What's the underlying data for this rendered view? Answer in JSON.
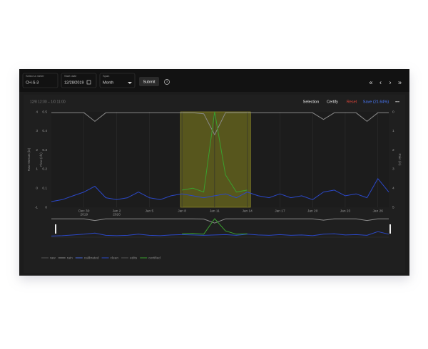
{
  "toolbar": {
    "meter_label": "Select a meter",
    "meter": "CH-S-3",
    "date_label": "Start date",
    "date": "12/28/2019",
    "span_label": "Span",
    "span": "Month",
    "submit": "Submit",
    "help": "?",
    "nav": [
      "«",
      "‹",
      "›",
      "»"
    ]
  },
  "actions": [
    "Selection",
    "Certify",
    "Reset",
    "Save (21.64%)",
    "•••"
  ],
  "chart_data": {
    "type": "line",
    "title": "12/8 12:00 – 1/0 11:00",
    "categories": [
      null,
      null,
      null,
      "Dec 30",
      null,
      null,
      "Jan 2",
      null,
      null,
      "Jan 5",
      null,
      null,
      "Jan 8",
      null,
      null,
      "Jan 11",
      null,
      null,
      "Jan 14",
      null,
      null,
      "Jan 17",
      null,
      null,
      "Jan 20",
      null,
      null,
      "Jan 23",
      null,
      null,
      "Jan 26",
      null
    ],
    "year_labels": [
      null,
      null,
      null,
      "2019",
      null,
      null,
      "2020",
      null,
      null,
      null,
      null,
      null,
      null,
      null,
      null,
      null,
      null,
      null,
      null,
      null,
      null,
      null,
      null,
      null,
      null,
      null,
      null,
      null,
      null,
      null,
      null,
      null
    ],
    "ylabel": "Raw Stream (in)",
    "ylim": [
      -1,
      4
    ],
    "yticks": [
      -1,
      0,
      1,
      2,
      3,
      4
    ],
    "flow_label": "Flow (cfs)",
    "flow_lim": [
      0,
      0.5
    ],
    "flow_ticks": [
      0,
      0.1,
      0.2,
      0.3,
      0.4,
      0.5
    ],
    "y2label": "Rain (in)",
    "y2lim": [
      5,
      0
    ],
    "y2ticks": [
      0,
      1,
      2,
      3,
      4,
      5
    ],
    "grid": true,
    "series": [
      {
        "name": "raw",
        "color": "#8a8a8a",
        "axis": "y",
        "values": [
          3.95,
          3.95,
          3.95,
          3.95,
          3.5,
          3.95,
          3.95,
          3.95,
          3.95,
          3.95,
          3.95,
          3.95,
          3.95,
          3.95,
          3.9,
          2.8,
          3.95,
          3.95,
          3.95,
          3.95,
          3.95,
          3.95,
          3.95,
          3.95,
          3.95,
          3.6,
          3.95,
          3.95,
          3.95,
          3.5,
          3.95,
          3.95
        ]
      },
      {
        "name": "clean",
        "color": "#2b48c8",
        "axis": "flow",
        "values": [
          0.03,
          0.04,
          0.06,
          0.08,
          0.11,
          0.05,
          0.04,
          0.05,
          0.08,
          0.05,
          0.04,
          0.06,
          0.07,
          0.06,
          0.05,
          0.06,
          0.07,
          0.05,
          0.08,
          0.06,
          0.05,
          0.07,
          0.05,
          0.06,
          0.04,
          0.08,
          0.09,
          0.06,
          0.07,
          0.05,
          0.15,
          0.08
        ]
      },
      {
        "name": "certified",
        "color": "#3aa02e",
        "axis": "flow",
        "values": [
          null,
          null,
          null,
          null,
          null,
          null,
          null,
          null,
          null,
          null,
          null,
          null,
          0.09,
          0.1,
          0.08,
          0.5,
          0.17,
          0.08,
          0.09,
          null,
          null,
          null,
          null,
          null,
          null,
          null,
          null,
          null,
          null,
          null,
          null,
          null
        ]
      }
    ],
    "legend": [
      {
        "name": "raw",
        "color": "#555555"
      },
      {
        "name": "rain",
        "color": "#8a8a8a"
      },
      {
        "name": "calibrated",
        "color": "#4a6ad8"
      },
      {
        "name": "clean",
        "color": "#2b48c8"
      },
      {
        "name": "edits",
        "color": "#555555"
      },
      {
        "name": "certified",
        "color": "#3aa02e"
      }
    ]
  }
}
